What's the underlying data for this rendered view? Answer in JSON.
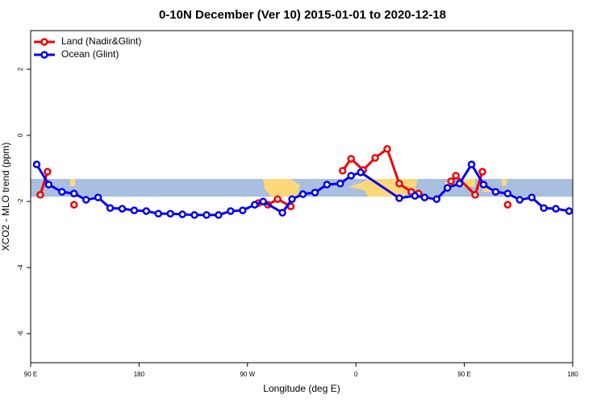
{
  "chart_data": {
    "type": "line",
    "title": "0-10N December (Ver 10)   2015-01-01 to 2020-12-18",
    "x_label": "Longitude (deg E)",
    "y_label": "XCO2 - MLO trend (ppm)",
    "xlim": [
      90,
      540
    ],
    "ylim": [
      -6.88,
      3.17
    ],
    "xticks": [
      {
        "value": 90,
        "label": "90 E"
      },
      180,
      {
        "value": 270,
        "label": "90 W"
      },
      {
        "value": 360,
        "label": "0"
      },
      {
        "value": 450,
        "label": "90 E"
      },
      {
        "value": 540,
        "label": "180"
      }
    ],
    "yticks": [
      -6,
      -4,
      -2,
      0,
      2
    ],
    "legend": "top-left",
    "series": [
      {
        "name": "Land (Nadir&Glint)",
        "color": "#ee0000",
        "x": [
          98,
          104,
          null,
          126,
          null,
          279,
          287,
          295,
          306,
          null,
          349,
          356,
          366,
          376,
          386,
          396,
          406,
          412,
          null,
          439,
          443,
          459,
          465,
          null,
          486
        ],
        "values": [
          -1.8,
          -1.1,
          null,
          -2.1,
          null,
          -2.05,
          -2.1,
          -1.93,
          -2.15,
          null,
          -1.07,
          -0.71,
          -1.05,
          -0.68,
          -0.41,
          -1.46,
          -1.71,
          -1.76,
          null,
          -1.39,
          -1.22,
          -1.8,
          -1.1,
          null,
          -2.1
        ]
      },
      {
        "name": "Ocean (Glint)",
        "color": "#0000ee",
        "x": [
          95,
          105,
          116,
          126,
          136,
          146,
          156,
          166,
          176,
          186,
          196,
          206,
          216,
          226,
          236,
          246,
          256,
          266,
          276,
          283,
          299,
          307,
          316,
          326,
          336,
          347,
          356,
          364,
          396,
          409,
          417,
          427,
          436,
          446,
          456,
          466,
          476,
          486,
          496,
          506,
          516,
          526,
          537
        ],
        "values": [
          -0.88,
          -1.49,
          -1.71,
          -1.76,
          -1.95,
          -1.88,
          -2.2,
          -2.22,
          -2.27,
          -2.29,
          -2.37,
          -2.37,
          -2.39,
          -2.41,
          -2.41,
          -2.41,
          -2.29,
          -2.27,
          -2.1,
          -2.0,
          -2.34,
          -1.93,
          -1.78,
          -1.73,
          -1.49,
          -1.46,
          -1.22,
          -1.12,
          -1.9,
          -1.83,
          -1.88,
          -1.93,
          -1.59,
          -1.46,
          -0.88,
          -1.49,
          -1.71,
          -1.76,
          -1.95,
          -1.88,
          -2.2,
          -2.22,
          -2.29
        ]
      }
    ]
  }
}
